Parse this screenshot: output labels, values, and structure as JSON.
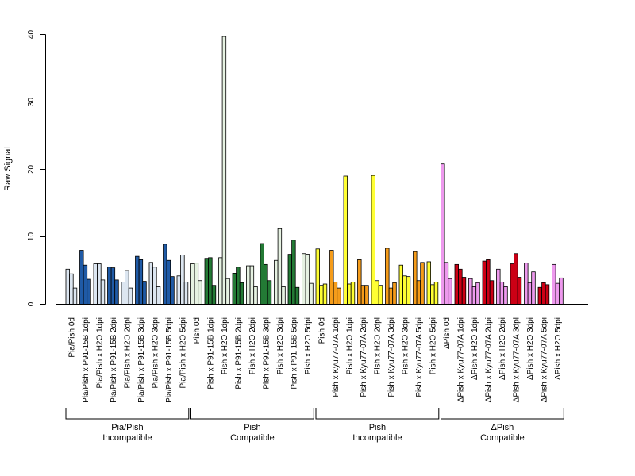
{
  "chart_data": {
    "type": "bar",
    "ylabel": "Raw Signal",
    "ylim": [
      0,
      40
    ],
    "yticks": [
      0,
      10,
      20,
      30,
      40
    ],
    "grid": false,
    "bars_per_category": 3,
    "categories": [
      "Pia/Pish 0d",
      "Pia/Pish x P91-15B 1dpi",
      "Pia/Pish x H2O 1dpi",
      "Pia/Pish x P91-15B 2dpi",
      "Pia/Pish x H2O 2dpi",
      "Pia/Pish x P91-15B 3dpi",
      "Pia/Pish x H2O 3dpi",
      "Pia/Pish x P91-15B 5dpi",
      "Pia/Pish x H2O 5dpi",
      "Pish 0d",
      "Pish x P91-15B 1dpi",
      "Pish x H2O 1dpi",
      "Pish x P91-15B 2dpi",
      "Pish x H2O 2dpi",
      "Pish x P91-15B 3dpi",
      "Pish x H2O 3dpi",
      "Pish x P91-15B 5dpi",
      "Pish x H2O 5dpi",
      "Pish 0d",
      "Pish x Kyu77-07A 1dpi",
      "Pish x H2O 1dpi",
      "Pish x Kyu77-07A 2dpi",
      "Pish x H2O 2dpi",
      "Pish x Kyu77-07A 3dpi",
      "Pish x H2O 3dpi",
      "Pish x Kyu77-07A 5dpi",
      "Pish x H2O 5dpi",
      "ΔPish 0d",
      "ΔPish x Kyu77-07A 1dpi",
      "ΔPish x H2O 1dpi",
      "ΔPish x Kyu77-07A 2dpi",
      "ΔPish x H2O 2dpi",
      "ΔPish x Kyu77-07A 3dpi",
      "ΔPish x H2O 3dpi",
      "ΔPish x Kyu77-07A 5dpi",
      "ΔPish x H2O 5dpi"
    ],
    "colors": [
      "#dce6f1",
      "#1f5aa6",
      "#dce6f1",
      "#1f5aa6",
      "#dce6f1",
      "#1f5aa6",
      "#dce6f1",
      "#1f5aa6",
      "#dce6f1",
      "#e6f2e2",
      "#237a35",
      "#e6f2e2",
      "#237a35",
      "#e6f2e2",
      "#237a35",
      "#e6f2e2",
      "#237a35",
      "#e6f2e2",
      "#ffff33",
      "#f59c1a",
      "#ffff33",
      "#f59c1a",
      "#ffff33",
      "#f59c1a",
      "#ffff33",
      "#f59c1a",
      "#ffff33",
      "#ee99ee",
      "#cc0015",
      "#ee99ee",
      "#cc0015",
      "#ee99ee",
      "#cc0015",
      "#ee99ee",
      "#cc0015",
      "#ee99ee"
    ],
    "values": [
      [
        5.2,
        4.5,
        2.4
      ],
      [
        8.0,
        5.8,
        3.7
      ],
      [
        6.0,
        6.0,
        3.6
      ],
      [
        5.5,
        5.4,
        3.6
      ],
      [
        3.3,
        5.0,
        2.4
      ],
      [
        7.1,
        6.6,
        3.4
      ],
      [
        6.2,
        5.5,
        2.6
      ],
      [
        8.9,
        6.5,
        4.1
      ],
      [
        4.2,
        7.3,
        3.3
      ],
      [
        6.0,
        6.1,
        3.5
      ],
      [
        6.8,
        6.9,
        2.8
      ],
      [
        6.9,
        39.7,
        3.8
      ],
      [
        4.6,
        5.5,
        3.2
      ],
      [
        5.7,
        5.7,
        2.6
      ],
      [
        9.0,
        5.9,
        3.5
      ],
      [
        6.5,
        11.2,
        2.6
      ],
      [
        7.4,
        9.5,
        2.5
      ],
      [
        7.5,
        7.4,
        3.1
      ],
      [
        8.2,
        2.8,
        3.0
      ],
      [
        8.0,
        3.3,
        2.4
      ],
      [
        19.0,
        3.0,
        3.3
      ],
      [
        6.6,
        2.8,
        2.8
      ],
      [
        19.1,
        3.5,
        2.8
      ],
      [
        8.3,
        2.4,
        3.2
      ],
      [
        5.8,
        4.2,
        4.1
      ],
      [
        7.8,
        3.5,
        6.2
      ],
      [
        6.3,
        2.9,
        3.3
      ],
      [
        20.8,
        6.2,
        3.8
      ],
      [
        5.9,
        5.2,
        4.0
      ],
      [
        3.8,
        2.6,
        3.2
      ],
      [
        6.4,
        6.6,
        3.5
      ],
      [
        5.2,
        3.3,
        2.6
      ],
      [
        6.0,
        7.5,
        4.0
      ],
      [
        6.1,
        3.2,
        4.8
      ],
      [
        2.5,
        3.2,
        2.9
      ],
      [
        5.9,
        3.1,
        3.9
      ]
    ],
    "groups": [
      {
        "label": [
          "Pia/Pish",
          "Incompatible"
        ],
        "from": 0,
        "to": 8
      },
      {
        "label": [
          "Pish",
          "Compatible"
        ],
        "from": 9,
        "to": 17
      },
      {
        "label": [
          "Pish",
          "Incompatible"
        ],
        "from": 18,
        "to": 26
      },
      {
        "label": [
          "ΔPish",
          "Compatible"
        ],
        "from": 27,
        "to": 35
      }
    ]
  }
}
